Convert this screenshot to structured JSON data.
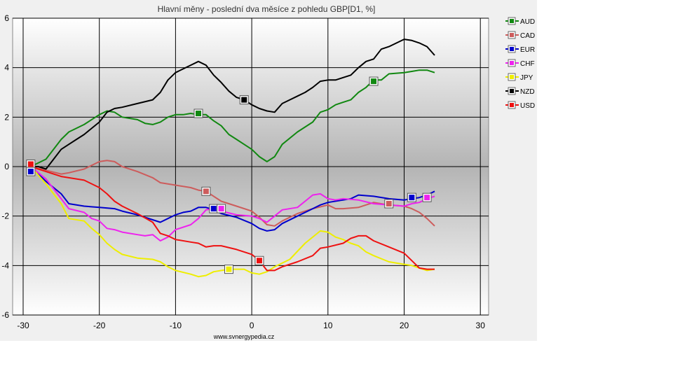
{
  "chart_data": {
    "type": "line",
    "title": "Hlavní měny - poslední dva měsíce z pohledu GBP[D1, %]",
    "source": "www.svnergypedia.cz",
    "xlim": [
      -30,
      30
    ],
    "ylim": [
      -6,
      6
    ],
    "x_ticks": [
      -30,
      -20,
      -10,
      0,
      10,
      20,
      30
    ],
    "y_ticks": [
      -6,
      -4,
      -2,
      0,
      2,
      4,
      6
    ],
    "grid": true,
    "legend_position": "right",
    "series": [
      {
        "name": "AUD",
        "color": "#118811",
        "x": [
          -29,
          -27,
          -25,
          -24,
          -22,
          -20,
          -19,
          -18,
          -17,
          -15,
          -14,
          -13,
          -12,
          -11,
          -10,
          -9,
          -8,
          -7,
          -6,
          -5,
          -4,
          -3,
          -2,
          -1,
          0,
          1,
          2,
          3,
          4,
          6,
          8,
          9,
          10,
          11,
          12,
          13,
          14,
          15,
          16,
          17,
          18,
          20,
          21,
          22,
          23,
          24
        ],
        "y": [
          0,
          0.3,
          1.1,
          1.4,
          1.7,
          2.1,
          2.25,
          2.2,
          2.0,
          1.9,
          1.75,
          1.7,
          1.8,
          2.0,
          2.1,
          2.1,
          2.15,
          2.1,
          2.1,
          1.85,
          1.65,
          1.3,
          1.1,
          0.9,
          0.7,
          0.4,
          0.2,
          0.4,
          0.9,
          1.4,
          1.8,
          2.2,
          2.3,
          2.5,
          2.6,
          2.7,
          3.0,
          3.2,
          3.5,
          3.5,
          3.75,
          3.8,
          3.85,
          3.9,
          3.9,
          3.8
        ]
      },
      {
        "name": "CAD",
        "color": "#cd5c5c",
        "x": [
          -29,
          -27,
          -25,
          -24,
          -22,
          -20,
          -19,
          -18,
          -17,
          -15,
          -13,
          -12,
          -10,
          -8,
          -7,
          -6,
          -4,
          -2,
          0,
          1,
          2,
          3,
          4,
          6,
          8,
          10,
          11,
          12,
          14,
          16,
          18,
          20,
          21,
          22,
          23,
          24
        ],
        "y": [
          0,
          -0.15,
          -0.3,
          -0.25,
          -0.1,
          0.2,
          0.25,
          0.2,
          0.0,
          -0.2,
          -0.45,
          -0.65,
          -0.75,
          -0.85,
          -0.95,
          -1.0,
          -1.4,
          -1.6,
          -1.8,
          -2.05,
          -2.35,
          -2.4,
          -2.2,
          -1.9,
          -1.7,
          -1.55,
          -1.7,
          -1.7,
          -1.65,
          -1.45,
          -1.55,
          -1.6,
          -1.7,
          -1.85,
          -2.1,
          -2.4
        ]
      },
      {
        "name": "EUR",
        "color": "#0000cc",
        "x": [
          -29,
          -27,
          -25,
          -24,
          -22,
          -20,
          -18,
          -17,
          -15,
          -13,
          -12,
          -11,
          -10,
          -9,
          -8,
          -7,
          -6,
          -5,
          -4,
          -2,
          0,
          1,
          2,
          3,
          4,
          6,
          8,
          9,
          10,
          12,
          13,
          14,
          16,
          18,
          20,
          21,
          22,
          23,
          24
        ],
        "y": [
          0,
          -0.6,
          -1.1,
          -1.5,
          -1.6,
          -1.65,
          -1.7,
          -1.8,
          -1.95,
          -2.15,
          -2.25,
          -2.1,
          -1.95,
          -1.85,
          -1.8,
          -1.65,
          -1.65,
          -1.75,
          -1.9,
          -2.05,
          -2.3,
          -2.5,
          -2.6,
          -2.55,
          -2.3,
          -2.0,
          -1.7,
          -1.55,
          -1.45,
          -1.35,
          -1.3,
          -1.15,
          -1.2,
          -1.3,
          -1.35,
          -1.3,
          -1.25,
          -1.15,
          -1.0
        ]
      },
      {
        "name": "CHF",
        "color": "#ee22ee",
        "x": [
          -29,
          -27,
          -25,
          -24,
          -22,
          -21,
          -20,
          -19,
          -18,
          -17,
          -15,
          -14,
          -13,
          -12,
          -11,
          -10,
          -8,
          -7,
          -6,
          -5,
          -4,
          -2,
          0,
          1,
          2,
          3,
          4,
          6,
          7,
          8,
          9,
          10,
          11,
          12,
          14,
          16,
          18,
          20,
          21,
          22,
          23,
          24
        ],
        "y": [
          0,
          -0.5,
          -1.3,
          -1.7,
          -1.85,
          -2.1,
          -2.2,
          -2.5,
          -2.55,
          -2.65,
          -2.75,
          -2.8,
          -2.75,
          -3.0,
          -2.85,
          -2.55,
          -2.35,
          -2.1,
          -1.75,
          -1.7,
          -1.8,
          -1.95,
          -2.0,
          -2.1,
          -2.25,
          -2.0,
          -1.75,
          -1.65,
          -1.4,
          -1.15,
          -1.1,
          -1.3,
          -1.35,
          -1.3,
          -1.35,
          -1.5,
          -1.55,
          -1.6,
          -1.5,
          -1.45,
          -1.3,
          -1.2
        ]
      },
      {
        "name": "JPY",
        "color": "#eeee00",
        "x": [
          -29,
          -27,
          -25,
          -24,
          -22,
          -21,
          -20,
          -19,
          -18,
          -17,
          -15,
          -13,
          -12,
          -11,
          -10,
          -8,
          -7,
          -6,
          -5,
          -3,
          -1,
          0,
          1,
          2,
          3,
          5,
          7,
          9,
          10,
          11,
          12,
          13,
          14,
          15,
          16,
          18,
          20,
          21,
          22,
          23,
          24
        ],
        "y": [
          0,
          -0.7,
          -1.5,
          -2.1,
          -2.2,
          -2.5,
          -2.75,
          -3.1,
          -3.35,
          -3.55,
          -3.7,
          -3.75,
          -3.85,
          -4.05,
          -4.2,
          -4.35,
          -4.45,
          -4.4,
          -4.25,
          -4.15,
          -4.15,
          -4.3,
          -4.35,
          -4.25,
          -4.05,
          -3.75,
          -3.1,
          -2.6,
          -2.65,
          -2.85,
          -2.95,
          -3.1,
          -3.2,
          -3.45,
          -3.6,
          -3.85,
          -3.95,
          -4.0,
          -4.1,
          -4.2,
          -4.15
        ]
      },
      {
        "name": "NZD",
        "color": "#000000",
        "x": [
          -29,
          -28,
          -27,
          -26,
          -25,
          -24,
          -23,
          -22,
          -20,
          -19,
          -18,
          -17,
          -15,
          -13,
          -12,
          -11,
          -10,
          -8,
          -7,
          -6,
          -5,
          -4,
          -3,
          -2,
          -1,
          0,
          1,
          2,
          3,
          4,
          5,
          6,
          7,
          8,
          9,
          10,
          11,
          12,
          13,
          14,
          15,
          16,
          17,
          18,
          20,
          21,
          22,
          23,
          24
        ],
        "y": [
          0,
          0.0,
          -0.1,
          0.3,
          0.7,
          0.9,
          1.1,
          1.3,
          1.8,
          2.2,
          2.35,
          2.4,
          2.55,
          2.7,
          3.0,
          3.5,
          3.8,
          4.1,
          4.25,
          4.1,
          3.7,
          3.4,
          3.05,
          2.8,
          2.7,
          2.5,
          2.35,
          2.25,
          2.2,
          2.55,
          2.7,
          2.85,
          3.0,
          3.2,
          3.45,
          3.5,
          3.5,
          3.6,
          3.7,
          4.0,
          4.25,
          4.35,
          4.75,
          4.85,
          5.15,
          5.1,
          5.0,
          4.85,
          4.5
        ]
      },
      {
        "name": "USD",
        "color": "#ee1111",
        "x": [
          -29,
          -27,
          -25,
          -24,
          -22,
          -20,
          -19,
          -18,
          -17,
          -15,
          -13,
          -12,
          -11,
          -10,
          -8,
          -7,
          -6,
          -5,
          -4,
          -2,
          0,
          1,
          2,
          3,
          4,
          6,
          8,
          9,
          10,
          12,
          13,
          14,
          15,
          16,
          18,
          20,
          21,
          22,
          23,
          24
        ],
        "y": [
          0,
          -0.2,
          -0.4,
          -0.45,
          -0.55,
          -0.85,
          -1.1,
          -1.4,
          -1.6,
          -1.9,
          -2.25,
          -2.7,
          -2.8,
          -2.95,
          -3.05,
          -3.1,
          -3.25,
          -3.2,
          -3.2,
          -3.35,
          -3.55,
          -3.8,
          -4.2,
          -4.2,
          -4.05,
          -3.85,
          -3.6,
          -3.3,
          -3.25,
          -3.1,
          -2.9,
          -2.8,
          -2.8,
          -3.0,
          -3.25,
          -3.5,
          -3.8,
          -4.1,
          -4.15,
          -4.15
        ]
      }
    ]
  }
}
